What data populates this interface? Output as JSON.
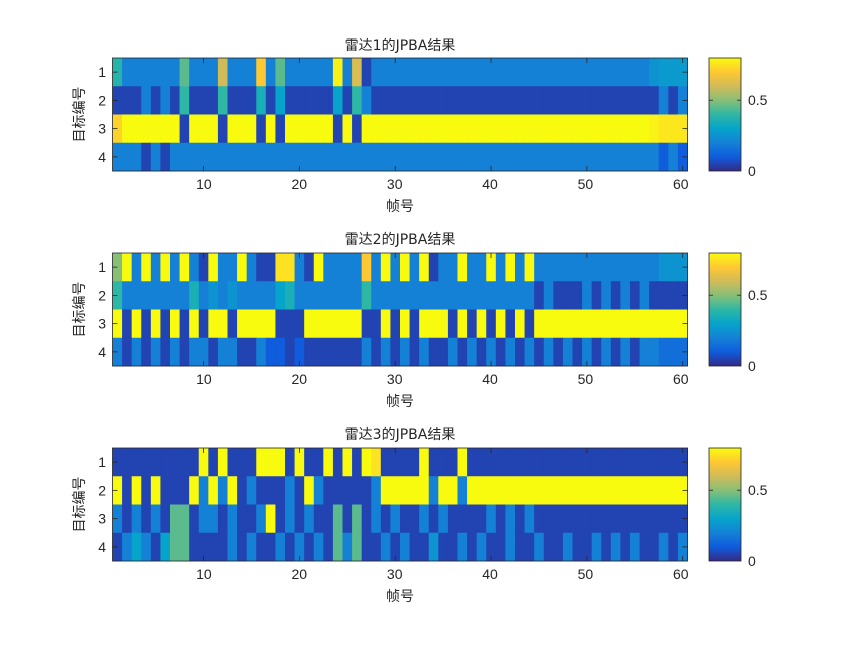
{
  "chart_data": [
    {
      "type": "heatmap",
      "title": "雷达1的JPBA结果",
      "xlabel": "帧号",
      "ylabel": "目标编号",
      "x_range": [
        1,
        60
      ],
      "y_categories": [
        "1",
        "2",
        "3",
        "4"
      ],
      "x_ticks": [
        "10",
        "20",
        "30",
        "40",
        "50",
        "60"
      ],
      "colorbar_ticks": [
        "0",
        "0.5"
      ],
      "clim": [
        0,
        0.8
      ],
      "colormap": "parula",
      "z": [
        [
          0.38,
          0.2,
          0.2,
          0.2,
          0.2,
          0.2,
          0.2,
          0.45,
          0.2,
          0.2,
          0.2,
          0.6,
          0.2,
          0.2,
          0.2,
          0.7,
          0.2,
          0.45,
          0.2,
          0.2,
          0.2,
          0.2,
          0.2,
          0.78,
          0.2,
          0.62,
          0.05,
          0.2,
          0.2,
          0.2,
          0.2,
          0.2,
          0.2,
          0.2,
          0.2,
          0.2,
          0.2,
          0.2,
          0.2,
          0.2,
          0.2,
          0.2,
          0.2,
          0.2,
          0.2,
          0.2,
          0.2,
          0.2,
          0.2,
          0.2,
          0.2,
          0.2,
          0.2,
          0.2,
          0.2,
          0.2,
          0.25,
          0.27,
          0.27,
          0.27
        ],
        [
          0.05,
          0.05,
          0.05,
          0.2,
          0.05,
          0.2,
          0.05,
          0.4,
          0.05,
          0.05,
          0.05,
          0.4,
          0.05,
          0.05,
          0.05,
          0.35,
          0.05,
          0.3,
          0.05,
          0.05,
          0.05,
          0.05,
          0.05,
          0.3,
          0.05,
          0.4,
          0.2,
          0.05,
          0.05,
          0.05,
          0.05,
          0.05,
          0.05,
          0.05,
          0.05,
          0.05,
          0.05,
          0.05,
          0.05,
          0.05,
          0.05,
          0.05,
          0.05,
          0.05,
          0.05,
          0.05,
          0.05,
          0.05,
          0.05,
          0.05,
          0.05,
          0.05,
          0.05,
          0.05,
          0.05,
          0.05,
          0.05,
          0.2,
          0.05,
          0.2
        ],
        [
          0.72,
          0.8,
          0.8,
          0.8,
          0.8,
          0.8,
          0.8,
          0.05,
          0.8,
          0.8,
          0.8,
          0.05,
          0.8,
          0.8,
          0.8,
          0.05,
          0.8,
          0.05,
          0.8,
          0.8,
          0.8,
          0.8,
          0.8,
          0.05,
          0.8,
          0.05,
          0.8,
          0.8,
          0.8,
          0.8,
          0.8,
          0.8,
          0.8,
          0.8,
          0.8,
          0.8,
          0.8,
          0.8,
          0.8,
          0.8,
          0.8,
          0.8,
          0.8,
          0.8,
          0.8,
          0.8,
          0.8,
          0.8,
          0.8,
          0.8,
          0.8,
          0.8,
          0.8,
          0.8,
          0.8,
          0.8,
          0.78,
          0.76,
          0.76,
          0.76
        ],
        [
          0.2,
          0.2,
          0.2,
          0.05,
          0.2,
          0.05,
          0.2,
          0.2,
          0.2,
          0.2,
          0.2,
          0.2,
          0.2,
          0.2,
          0.2,
          0.2,
          0.2,
          0.2,
          0.2,
          0.2,
          0.2,
          0.2,
          0.2,
          0.2,
          0.2,
          0.2,
          0.2,
          0.2,
          0.2,
          0.2,
          0.2,
          0.2,
          0.2,
          0.2,
          0.2,
          0.2,
          0.2,
          0.2,
          0.2,
          0.2,
          0.2,
          0.2,
          0.2,
          0.2,
          0.2,
          0.2,
          0.2,
          0.2,
          0.2,
          0.2,
          0.2,
          0.2,
          0.2,
          0.2,
          0.2,
          0.2,
          0.2,
          0.1,
          0.2,
          0.1
        ]
      ]
    },
    {
      "type": "heatmap",
      "title": "雷达2的JPBA结果",
      "xlabel": "帧号",
      "ylabel": "目标编号",
      "x_range": [
        1,
        60
      ],
      "y_categories": [
        "1",
        "2",
        "3",
        "4"
      ],
      "x_ticks": [
        "10",
        "20",
        "30",
        "40",
        "50",
        "60"
      ],
      "colorbar_ticks": [
        "0",
        "0.5"
      ],
      "clim": [
        0,
        0.8
      ],
      "colormap": "parula",
      "z": [
        [
          0.5,
          0.8,
          0.2,
          0.8,
          0.2,
          0.8,
          0.2,
          0.8,
          0.2,
          0.05,
          0.8,
          0.2,
          0.2,
          0.8,
          0.2,
          0.05,
          0.05,
          0.75,
          0.75,
          0.2,
          0.05,
          0.8,
          0.2,
          0.2,
          0.2,
          0.2,
          0.7,
          0.2,
          0.8,
          0.2,
          0.8,
          0.2,
          0.8,
          0.05,
          0.2,
          0.2,
          0.8,
          0.2,
          0.2,
          0.8,
          0.2,
          0.8,
          0.2,
          0.8,
          0.2,
          0.2,
          0.2,
          0.2,
          0.2,
          0.2,
          0.2,
          0.2,
          0.2,
          0.2,
          0.2,
          0.2,
          0.2,
          0.25,
          0.25,
          0.25
        ],
        [
          0.4,
          0.2,
          0.2,
          0.2,
          0.2,
          0.2,
          0.2,
          0.2,
          0.35,
          0.2,
          0.25,
          0.2,
          0.25,
          0.2,
          0.2,
          0.2,
          0.2,
          0.3,
          0.35,
          0.2,
          0.2,
          0.2,
          0.2,
          0.2,
          0.2,
          0.2,
          0.4,
          0.2,
          0.2,
          0.2,
          0.2,
          0.2,
          0.2,
          0.2,
          0.2,
          0.2,
          0.2,
          0.2,
          0.2,
          0.2,
          0.2,
          0.2,
          0.2,
          0.2,
          0.05,
          0.2,
          0.05,
          0.05,
          0.05,
          0.2,
          0.05,
          0.2,
          0.05,
          0.2,
          0.05,
          0.2,
          0.05,
          0.05,
          0.05,
          0.05
        ],
        [
          0.8,
          0.05,
          0.8,
          0.05,
          0.8,
          0.05,
          0.8,
          0.05,
          0.8,
          0.05,
          0.8,
          0.8,
          0.05,
          0.8,
          0.8,
          0.8,
          0.8,
          0.05,
          0.05,
          0.05,
          0.8,
          0.8,
          0.8,
          0.8,
          0.8,
          0.8,
          0.05,
          0.05,
          0.8,
          0.05,
          0.8,
          0.05,
          0.8,
          0.8,
          0.8,
          0.05,
          0.8,
          0.05,
          0.8,
          0.05,
          0.8,
          0.05,
          0.8,
          0.05,
          0.8,
          0.8,
          0.8,
          0.8,
          0.8,
          0.8,
          0.8,
          0.8,
          0.8,
          0.8,
          0.8,
          0.8,
          0.8,
          0.8,
          0.8,
          0.8
        ],
        [
          0.2,
          0.05,
          0.2,
          0.05,
          0.2,
          0.05,
          0.2,
          0.05,
          0.2,
          0.2,
          0.05,
          0.2,
          0.2,
          0.05,
          0.05,
          0.2,
          0.1,
          0.1,
          0.05,
          0.1,
          0.05,
          0.05,
          0.05,
          0.05,
          0.05,
          0.05,
          0.2,
          0.05,
          0.2,
          0.05,
          0.2,
          0.05,
          0.2,
          0.05,
          0.05,
          0.2,
          0.05,
          0.2,
          0.05,
          0.2,
          0.05,
          0.2,
          0.05,
          0.2,
          0.05,
          0.2,
          0.05,
          0.2,
          0.05,
          0.2,
          0.05,
          0.2,
          0.05,
          0.2,
          0.05,
          0.2,
          0.2,
          0.15,
          0.15,
          0.15
        ]
      ]
    },
    {
      "type": "heatmap",
      "title": "雷达3的JPBA结果",
      "xlabel": "帧号",
      "ylabel": "目标编号",
      "x_range": [
        1,
        60
      ],
      "y_categories": [
        "1",
        "2",
        "3",
        "4"
      ],
      "x_ticks": [
        "10",
        "20",
        "30",
        "40",
        "50",
        "60"
      ],
      "colorbar_ticks": [
        "0",
        "0.5"
      ],
      "clim": [
        0,
        0.8
      ],
      "colormap": "parula",
      "z": [
        [
          0.05,
          0.05,
          0.05,
          0.05,
          0.05,
          0.05,
          0.05,
          0.05,
          0.05,
          0.8,
          0.05,
          0.8,
          0.05,
          0.05,
          0.05,
          0.8,
          0.8,
          0.8,
          0.05,
          0.8,
          0.05,
          0.05,
          0.8,
          0.05,
          0.8,
          0.05,
          0.8,
          0.75,
          0.05,
          0.05,
          0.05,
          0.05,
          0.8,
          0.05,
          0.05,
          0.05,
          0.8,
          0.05,
          0.05,
          0.05,
          0.05,
          0.05,
          0.05,
          0.05,
          0.05,
          0.05,
          0.05,
          0.05,
          0.05,
          0.05,
          0.05,
          0.05,
          0.05,
          0.05,
          0.05,
          0.05,
          0.05,
          0.05,
          0.05,
          0.05
        ],
        [
          0.8,
          0.05,
          0.8,
          0.05,
          0.8,
          0.05,
          0.05,
          0.05,
          0.8,
          0.2,
          0.8,
          0.2,
          0.8,
          0.05,
          0.2,
          0.05,
          0.05,
          0.05,
          0.2,
          0.05,
          0.8,
          0.2,
          0.05,
          0.05,
          0.05,
          0.05,
          0.05,
          0.2,
          0.8,
          0.8,
          0.8,
          0.8,
          0.8,
          0.2,
          0.8,
          0.8,
          0.2,
          0.8,
          0.8,
          0.8,
          0.8,
          0.8,
          0.8,
          0.8,
          0.8,
          0.8,
          0.8,
          0.8,
          0.8,
          0.8,
          0.8,
          0.8,
          0.8,
          0.8,
          0.8,
          0.8,
          0.8,
          0.8,
          0.8,
          0.8
        ],
        [
          0.2,
          0.05,
          0.2,
          0.05,
          0.2,
          0.05,
          0.45,
          0.45,
          0.05,
          0.2,
          0.2,
          0.05,
          0.2,
          0.05,
          0.05,
          0.2,
          0.8,
          0.05,
          0.2,
          0.05,
          0.2,
          0.05,
          0.05,
          0.45,
          0.05,
          0.45,
          0.05,
          0.2,
          0.05,
          0.2,
          0.05,
          0.05,
          0.2,
          0.05,
          0.2,
          0.05,
          0.05,
          0.05,
          0.05,
          0.2,
          0.05,
          0.2,
          0.05,
          0.2,
          0.05,
          0.05,
          0.05,
          0.05,
          0.05,
          0.05,
          0.05,
          0.05,
          0.05,
          0.05,
          0.05,
          0.05,
          0.05,
          0.05,
          0.05,
          0.05
        ],
        [
          0.05,
          0.2,
          0.3,
          0.2,
          0.05,
          0.3,
          0.45,
          0.45,
          0.05,
          0.05,
          0.05,
          0.05,
          0.2,
          0.05,
          0.2,
          0.05,
          0.05,
          0.2,
          0.05,
          0.2,
          0.05,
          0.2,
          0.05,
          0.45,
          0.2,
          0.45,
          0.05,
          0.05,
          0.2,
          0.05,
          0.2,
          0.05,
          0.05,
          0.25,
          0.05,
          0.05,
          0.2,
          0.05,
          0.2,
          0.05,
          0.05,
          0.2,
          0.05,
          0.05,
          0.2,
          0.05,
          0.05,
          0.2,
          0.05,
          0.05,
          0.2,
          0.05,
          0.2,
          0.05,
          0.2,
          0.05,
          0.05,
          0.2,
          0.05,
          0.2
        ]
      ]
    }
  ]
}
